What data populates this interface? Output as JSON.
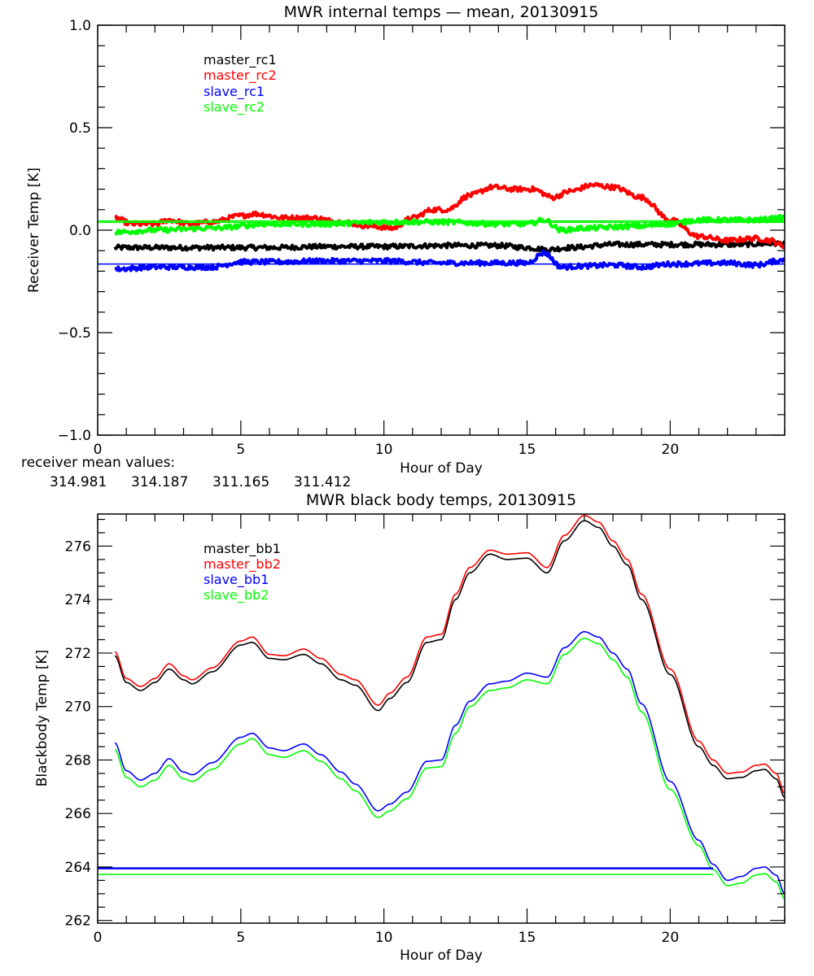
{
  "chart_data": [
    {
      "type": "line",
      "title": "MWR internal temps — mean, 20130915",
      "xlabel": "Hour of Day",
      "ylabel": "Receiver Temp [K]",
      "xlim": [
        0,
        24
      ],
      "ylim": [
        -1.0,
        1.0
      ],
      "xticks": [
        0,
        5,
        10,
        15,
        20
      ],
      "xtick_labels": [
        "0",
        "5",
        "10",
        "15",
        "20"
      ],
      "yticks": [
        -1.0,
        -0.5,
        0.0,
        0.5,
        1.0
      ],
      "ytick_labels": [
        "−1.0",
        "−0.5",
        "0.0",
        "0.5",
        "1.0"
      ],
      "grid": false,
      "legend_position": "top-left",
      "series": [
        {
          "name": "master_rc1",
          "color": "#000000",
          "noisy": true,
          "x": [
            0.6,
            2,
            4,
            6,
            8,
            10,
            12,
            14,
            15,
            15.7,
            16.5,
            18,
            20,
            22,
            24
          ],
          "y": [
            -0.085,
            -0.085,
            -0.085,
            -0.085,
            -0.08,
            -0.08,
            -0.075,
            -0.075,
            -0.085,
            -0.095,
            -0.085,
            -0.07,
            -0.07,
            -0.07,
            -0.065
          ]
        },
        {
          "name": "master_rc2",
          "color": "#ff0000",
          "noisy": true,
          "x": [
            0.6,
            1.2,
            2,
            2.5,
            3.2,
            4,
            5,
            5.5,
            6.5,
            7.5,
            8.5,
            9.5,
            10.3,
            11,
            11.7,
            12.2,
            13,
            13.8,
            14.5,
            15.2,
            15.9,
            16.5,
            17.3,
            18,
            19,
            20,
            21,
            22,
            23,
            23.5,
            24
          ],
          "y": [
            0.06,
            0.03,
            0.03,
            0.05,
            0.03,
            0.04,
            0.07,
            0.08,
            0.06,
            0.06,
            0.04,
            0.02,
            0.01,
            0.06,
            0.1,
            0.1,
            0.17,
            0.21,
            0.2,
            0.2,
            0.16,
            0.19,
            0.22,
            0.21,
            0.16,
            0.05,
            -0.03,
            -0.05,
            -0.04,
            -0.05,
            -0.08
          ]
        },
        {
          "name": "slave_rc1",
          "color": "#0000ff",
          "noisy": true,
          "x": [
            0.6,
            2,
            4,
            5,
            6,
            8,
            10,
            12,
            14,
            15,
            15.6,
            16.2,
            17,
            18,
            19,
            20,
            22,
            23,
            23.8,
            24
          ],
          "y": [
            -0.19,
            -0.18,
            -0.18,
            -0.155,
            -0.155,
            -0.15,
            -0.15,
            -0.16,
            -0.16,
            -0.16,
            -0.11,
            -0.18,
            -0.175,
            -0.17,
            -0.18,
            -0.165,
            -0.16,
            -0.17,
            -0.15,
            -0.14
          ]
        },
        {
          "name": "slave_rc2",
          "color": "#00ff00",
          "noisy": true,
          "x": [
            0.6,
            2,
            4,
            6,
            8,
            10,
            12,
            14,
            15,
            15.6,
            16.2,
            17,
            19,
            20,
            21,
            22,
            23,
            24
          ],
          "y": [
            -0.01,
            0.0,
            0.01,
            0.03,
            0.03,
            0.04,
            0.04,
            0.03,
            0.03,
            0.05,
            0.0,
            0.01,
            0.02,
            0.03,
            0.05,
            0.05,
            0.05,
            0.06
          ]
        }
      ],
      "reference_lines": [
        {
          "name": "slave_rc2-mean-line",
          "color": "#00ff00",
          "y": 0.045
        },
        {
          "name": "slave_rc2-mean-line-2",
          "color": "#00ff00",
          "y": 0.038
        },
        {
          "name": "slave_rc1-mean-line",
          "color": "#0000ff",
          "y": -0.165
        }
      ],
      "annotation": {
        "label": "receiver mean values:",
        "values": [
          {
            "text": "314.981",
            "color": "#000000"
          },
          {
            "text": "314.187",
            "color": "#ff0000"
          },
          {
            "text": "311.165",
            "color": "#0000ff"
          },
          {
            "text": "311.412",
            "color": "#00ff00"
          }
        ]
      }
    },
    {
      "type": "line",
      "title": "MWR black body temps, 20130915",
      "xlabel": "Hour of Day",
      "ylabel": "Blackbody Temp [K]",
      "xlim": [
        0,
        24
      ],
      "ylim": [
        261.9,
        277.2
      ],
      "xticks": [
        0,
        5,
        10,
        15,
        20
      ],
      "xtick_labels": [
        "0",
        "5",
        "10",
        "15",
        "20"
      ],
      "yticks": [
        262,
        264,
        266,
        268,
        270,
        272,
        274,
        276
      ],
      "ytick_labels": [
        "262",
        "264",
        "266",
        "268",
        "270",
        "272",
        "274",
        "276"
      ],
      "grid": false,
      "legend_position": "top-left",
      "series": [
        {
          "name": "master_bb1",
          "color": "#000000",
          "x": [
            0.6,
            1,
            1.5,
            2,
            2.5,
            3,
            3.3,
            4,
            5,
            5.4,
            6,
            6.5,
            7.2,
            7.8,
            8.5,
            9,
            9.8,
            10.2,
            10.8,
            11.5,
            12,
            12.5,
            13,
            13.7,
            14.3,
            15,
            15.7,
            16.3,
            17,
            17.5,
            18,
            18.5,
            19,
            20,
            21,
            21.5,
            22,
            22.5,
            23,
            23.3,
            23.7,
            24
          ],
          "y": [
            271.9,
            270.9,
            270.6,
            270.9,
            271.4,
            271.0,
            270.85,
            271.3,
            272.3,
            272.4,
            271.8,
            271.75,
            271.95,
            271.6,
            271.0,
            270.8,
            269.85,
            270.3,
            270.9,
            272.4,
            272.5,
            274.0,
            275.0,
            275.7,
            275.5,
            275.55,
            275.0,
            276.2,
            276.95,
            276.7,
            276.0,
            275.3,
            274.0,
            271.2,
            268.5,
            267.8,
            267.3,
            267.35,
            267.6,
            267.65,
            267.3,
            266.6
          ]
        },
        {
          "name": "master_bb2",
          "color": "#ff0000",
          "x": [
            0.6,
            1,
            1.5,
            2,
            2.5,
            3,
            3.3,
            4,
            5,
            5.4,
            6,
            6.5,
            7.2,
            7.8,
            8.5,
            9,
            9.8,
            10.2,
            10.8,
            11.5,
            12,
            12.5,
            13,
            13.7,
            14.3,
            15,
            15.7,
            16.3,
            17,
            17.5,
            18,
            18.5,
            19,
            20,
            21,
            21.5,
            22,
            22.5,
            23,
            23.3,
            23.7,
            24
          ],
          "y": [
            272.05,
            271.05,
            270.75,
            271.05,
            271.6,
            271.15,
            271.0,
            271.45,
            272.45,
            272.6,
            271.95,
            271.9,
            272.15,
            271.8,
            271.2,
            271.0,
            270.05,
            270.5,
            271.1,
            272.6,
            272.7,
            274.2,
            275.2,
            275.85,
            275.7,
            275.75,
            275.2,
            276.4,
            277.15,
            276.9,
            276.2,
            275.5,
            274.2,
            271.4,
            268.7,
            268.0,
            267.5,
            267.55,
            267.8,
            267.85,
            267.5,
            266.75
          ]
        },
        {
          "name": "slave_bb1",
          "color": "#0000ff",
          "x": [
            0.6,
            1,
            1.5,
            2,
            2.5,
            3,
            3.3,
            4,
            5,
            5.4,
            6,
            6.5,
            7.2,
            7.8,
            8.5,
            9,
            9.8,
            10.2,
            10.8,
            11.5,
            12,
            12.5,
            13,
            13.7,
            14.3,
            15,
            15.7,
            16.3,
            17,
            17.5,
            18,
            18.5,
            19,
            20,
            21,
            21.5,
            22,
            22.5,
            23,
            23.3,
            23.7,
            24
          ],
          "y": [
            268.65,
            267.6,
            267.25,
            267.5,
            268.05,
            267.55,
            267.45,
            267.9,
            268.85,
            269.0,
            268.45,
            268.35,
            268.6,
            268.2,
            267.55,
            267.1,
            266.1,
            266.35,
            266.8,
            267.95,
            268.0,
            269.3,
            270.2,
            270.85,
            270.95,
            271.25,
            271.1,
            272.2,
            272.8,
            272.6,
            272.0,
            271.4,
            270.1,
            267.2,
            265.0,
            264.1,
            263.5,
            263.65,
            263.95,
            264.0,
            263.7,
            263.0
          ]
        },
        {
          "name": "slave_bb2",
          "color": "#00ff00",
          "x": [
            0.6,
            1,
            1.5,
            2,
            2.5,
            3,
            3.3,
            4,
            5,
            5.4,
            6,
            6.5,
            7.2,
            7.8,
            8.5,
            9,
            9.8,
            10.2,
            10.8,
            11.5,
            12,
            12.5,
            13,
            13.7,
            14.3,
            15,
            15.7,
            16.3,
            17,
            17.5,
            18,
            18.5,
            19,
            20,
            21,
            21.5,
            22,
            22.5,
            23,
            23.3,
            23.7,
            24
          ],
          "y": [
            268.4,
            267.35,
            267.0,
            267.25,
            267.8,
            267.3,
            267.2,
            267.65,
            268.6,
            268.8,
            268.2,
            268.1,
            268.35,
            267.95,
            267.3,
            266.85,
            265.85,
            266.1,
            266.55,
            267.7,
            267.75,
            269.0,
            270.0,
            270.6,
            270.7,
            271.0,
            270.85,
            271.95,
            272.55,
            272.35,
            271.75,
            271.1,
            269.8,
            266.9,
            264.8,
            263.9,
            263.3,
            263.4,
            263.7,
            263.75,
            263.45,
            262.8
          ]
        }
      ],
      "reference_lines": [
        {
          "name": "slave_bb1-mean-line",
          "color": "#0000ff",
          "y": 263.95,
          "x_end": 21.5
        },
        {
          "name": "slave_bb2-mean-line",
          "color": "#00ff00",
          "y": 263.72,
          "x_end": 21.5
        }
      ]
    }
  ]
}
